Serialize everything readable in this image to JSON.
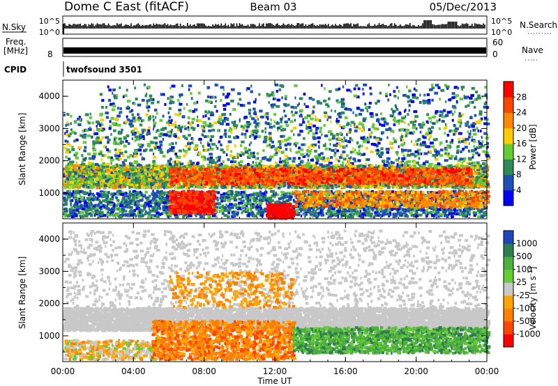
{
  "header": {
    "title": "Dome C East (fitACF)",
    "beam": "Beam 03",
    "date": "05/Dec/2013"
  },
  "nsky_panel": {
    "left_label": "N.Sky",
    "right_label": "N.Search",
    "top_tick": "10^5",
    "bottom_tick": "10^0"
  },
  "freq_panel": {
    "left_label_line1": "Freq.",
    "left_label_line2": "[MHz]",
    "left_tick": "8",
    "right_label": "Nave",
    "right_top_tick": "60",
    "right_bottom_tick": "0"
  },
  "cpid_panel": {
    "label": "CPID",
    "value": "twofsound 3501"
  },
  "colors": {
    "power": [
      "#0000ff",
      "#1e4fb4",
      "#2e8b57",
      "#66cc33",
      "#ffcc00",
      "#ff8800",
      "#ff4400",
      "#ff0000"
    ],
    "velocity": [
      "#1e46be",
      "#2e7d4f",
      "#4caf3f",
      "#66cc33",
      "#c8c8c8",
      "#ffa500",
      "#ff7f00",
      "#ff4500",
      "#ff0000"
    ]
  },
  "chart_data": [
    {
      "type": "heatmap",
      "name": "power",
      "ylabel": "Slant Range [km]",
      "ylim": [
        200,
        4500
      ],
      "yticks": [
        "1000",
        "2000",
        "3000",
        "4000"
      ],
      "xlim": [
        0,
        24
      ],
      "colorbar_label": "Power [dB]",
      "colorbar_ticks": [
        "4",
        "8",
        "12",
        "16",
        "20",
        "24",
        "28"
      ]
    },
    {
      "type": "heatmap",
      "name": "velocity",
      "ylabel": "Slant Range [km]",
      "ylim": [
        200,
        4500
      ],
      "yticks": [
        "1000",
        "2000",
        "3000",
        "4000"
      ],
      "xlim": [
        0,
        24
      ],
      "xticks": [
        "00:00",
        "04:00",
        "08:00",
        "12:00",
        "16:00",
        "20:00",
        "00:00"
      ],
      "xlabel": "Time UT",
      "colorbar_label": "Velocity [m s^-1]",
      "colorbar_ticks": [
        "1000",
        "500",
        "100",
        "25",
        "-25",
        "-100",
        "-500",
        "-1000"
      ]
    }
  ]
}
